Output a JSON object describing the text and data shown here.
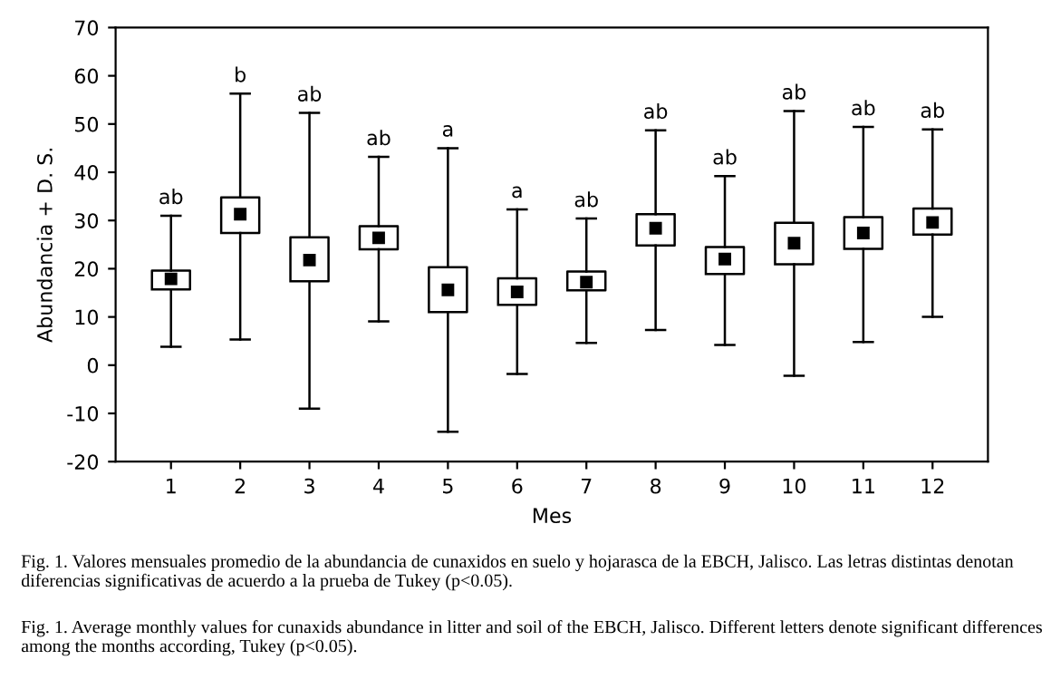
{
  "chart_data": {
    "type": "box",
    "xlabel": "Mes",
    "ylabel": "Abundancia + D. S.",
    "categories": [
      "1",
      "2",
      "3",
      "4",
      "5",
      "6",
      "7",
      "8",
      "9",
      "10",
      "11",
      "12"
    ],
    "boxes": [
      {
        "low": 3.8,
        "q1": 15.7,
        "median": 17.9,
        "q3": 19.6,
        "high": 31
      },
      {
        "low": 5.3,
        "q1": 27.4,
        "median": 31.3,
        "q3": 34.8,
        "high": 56.3
      },
      {
        "low": -9,
        "q1": 17.4,
        "median": 21.8,
        "q3": 26.5,
        "high": 52.3
      },
      {
        "low": 9.1,
        "q1": 24,
        "median": 26.4,
        "q3": 28.8,
        "high": 43.2
      },
      {
        "low": -13.8,
        "q1": 11,
        "median": 15.6,
        "q3": 20.3,
        "high": 45
      },
      {
        "low": -1.8,
        "q1": 12.5,
        "median": 15.2,
        "q3": 18,
        "high": 32.3
      },
      {
        "low": 4.6,
        "q1": 15.5,
        "median": 17.2,
        "q3": 19.4,
        "high": 30.4
      },
      {
        "low": 7.3,
        "q1": 24.8,
        "median": 28.4,
        "q3": 31.3,
        "high": 48.7
      },
      {
        "low": 4.2,
        "q1": 18.9,
        "median": 22,
        "q3": 24.5,
        "high": 39.2
      },
      {
        "low": -2.2,
        "q1": 20.9,
        "median": 25.3,
        "q3": 29.5,
        "high": 52.7
      },
      {
        "low": 4.8,
        "q1": 24.1,
        "median": 27.4,
        "q3": 30.7,
        "high": 49.4
      },
      {
        "low": 10,
        "q1": 27.1,
        "median": 29.6,
        "q3": 32.5,
        "high": 48.9
      }
    ],
    "ylim": [
      -20,
      70
    ],
    "yticks": [
      -20,
      -10,
      0,
      10,
      20,
      30,
      40,
      50,
      60,
      70
    ],
    "grid": false,
    "annotations": [
      {
        "text": "ab",
        "x": "1",
        "y": 31
      },
      {
        "text": "b",
        "x": "2",
        "y": 56.3
      },
      {
        "text": "ab",
        "x": "3",
        "y": 52.3
      },
      {
        "text": "ab",
        "x": "4",
        "y": 43.2
      },
      {
        "text": "a",
        "x": "5",
        "y": 45
      },
      {
        "text": "a",
        "x": "6",
        "y": 32.3
      },
      {
        "text": "ab",
        "x": "7",
        "y": 30.4
      },
      {
        "text": "ab",
        "x": "8",
        "y": 48.7
      },
      {
        "text": "ab",
        "x": "9",
        "y": 39.2
      },
      {
        "text": "ab",
        "x": "10",
        "y": 52.7
      },
      {
        "text": "ab",
        "x": "11",
        "y": 49.4
      },
      {
        "text": "ab",
        "x": "12",
        "y": 48.9
      },
      "Fig. 1. Valores mensuales promedio de la abundancia de cunaxidos en suelo y hojarasca de la EBCH, Jalisco. Las letras distintas denotan diferencias significativas de acuerdo a la prueba de Tukey (p<0.05).",
      "Fig. 1. Average monthly values for cunaxids abundance in litter and soil of the EBCH, Jalisco. Different letters denote significant differences among the months according, Tukey (p<0.05)."
    ]
  }
}
